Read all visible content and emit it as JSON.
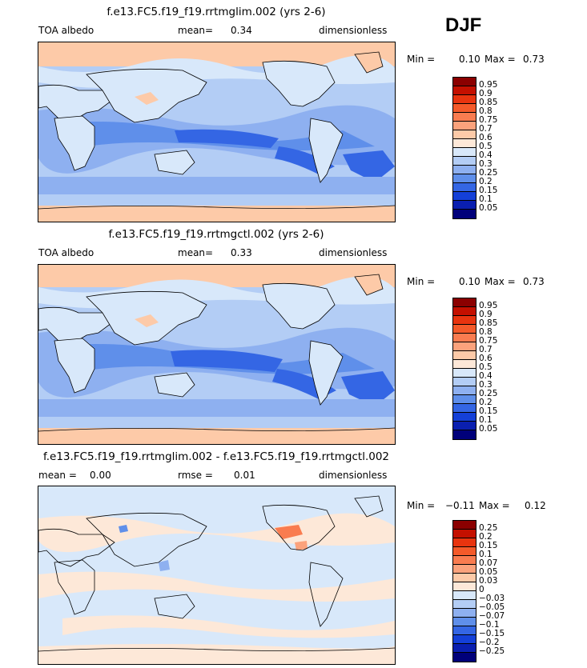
{
  "season": "DJF",
  "panels": [
    {
      "title": "f.e13.FC5.f19_f19.rrtmglim.002 (yrs 2-6)",
      "left_label": "TOA albedo",
      "center_label": "mean=",
      "center_value": "0.34",
      "right_label": "dimensionless",
      "min_label": "Min =",
      "min_value": "0.10",
      "max_label": "Max =",
      "max_value": "0.73",
      "colorbar_labels": [
        "0.95",
        "0.9",
        "0.85",
        "0.8",
        "0.75",
        "0.7",
        "0.6",
        "0.5",
        "0.4",
        "0.3",
        "0.25",
        "0.2",
        "0.15",
        "0.1",
        "0.05"
      ],
      "colorbar_colors": [
        "#8b0000",
        "#c41000",
        "#e8340f",
        "#f45a2a",
        "#f97c50",
        "#fba27c",
        "#fdcaa8",
        "#fde8d8",
        "#d8e8fa",
        "#b3cdf5",
        "#8eb0f0",
        "#5f8fea",
        "#3466e4",
        "#1440d8",
        "#0a1fb0",
        "#00007a"
      ]
    },
    {
      "title": "f.e13.FC5.f19_f19.rrtmgctl.002 (yrs 2-6)",
      "left_label": "TOA albedo",
      "center_label": "mean=",
      "center_value": "0.33",
      "right_label": "dimensionless",
      "min_label": "Min =",
      "min_value": "0.10",
      "max_label": "Max =",
      "max_value": "0.73",
      "colorbar_labels": [
        "0.95",
        "0.9",
        "0.85",
        "0.8",
        "0.75",
        "0.7",
        "0.6",
        "0.5",
        "0.4",
        "0.3",
        "0.25",
        "0.2",
        "0.15",
        "0.1",
        "0.05"
      ],
      "colorbar_colors": [
        "#8b0000",
        "#c41000",
        "#e8340f",
        "#f45a2a",
        "#f97c50",
        "#fba27c",
        "#fdcaa8",
        "#fde8d8",
        "#d8e8fa",
        "#b3cdf5",
        "#8eb0f0",
        "#5f8fea",
        "#3466e4",
        "#1440d8",
        "#0a1fb0",
        "#00007a"
      ]
    },
    {
      "title": "f.e13.FC5.f19_f19.rrtmglim.002 - f.e13.FC5.f19_f19.rrtmgctl.002",
      "left_label": "mean =",
      "left_value": "0.00",
      "center_label": "rmse =",
      "center_value": "0.01",
      "right_label": "dimensionless",
      "min_label": "Min =",
      "min_value": "−0.11",
      "max_label": "Max =",
      "max_value": "0.12",
      "colorbar_labels": [
        "0.25",
        "0.2",
        "0.15",
        "0.1",
        "0.07",
        "0.05",
        "0.03",
        "0",
        "−0.03",
        "−0.05",
        "−0.07",
        "−0.1",
        "−0.15",
        "−0.2",
        "−0.25"
      ],
      "colorbar_colors": [
        "#8b0000",
        "#c41000",
        "#e8340f",
        "#f45a2a",
        "#f97c50",
        "#fba27c",
        "#fdcaa8",
        "#fde8d8",
        "#d8e8fa",
        "#b3cdf5",
        "#8eb0f0",
        "#5f8fea",
        "#3466e4",
        "#1440d8",
        "#0a1fb0",
        "#00007a"
      ]
    }
  ],
  "colors": {
    "land_light": "#d8e8fa",
    "ocean_mid": "#8eb0f0",
    "ocean_deep": "#3466e4",
    "storm_peach": "#fdcaa8",
    "diff_bg": "#d8e8fa",
    "diff_pos": "#fde8d8"
  }
}
